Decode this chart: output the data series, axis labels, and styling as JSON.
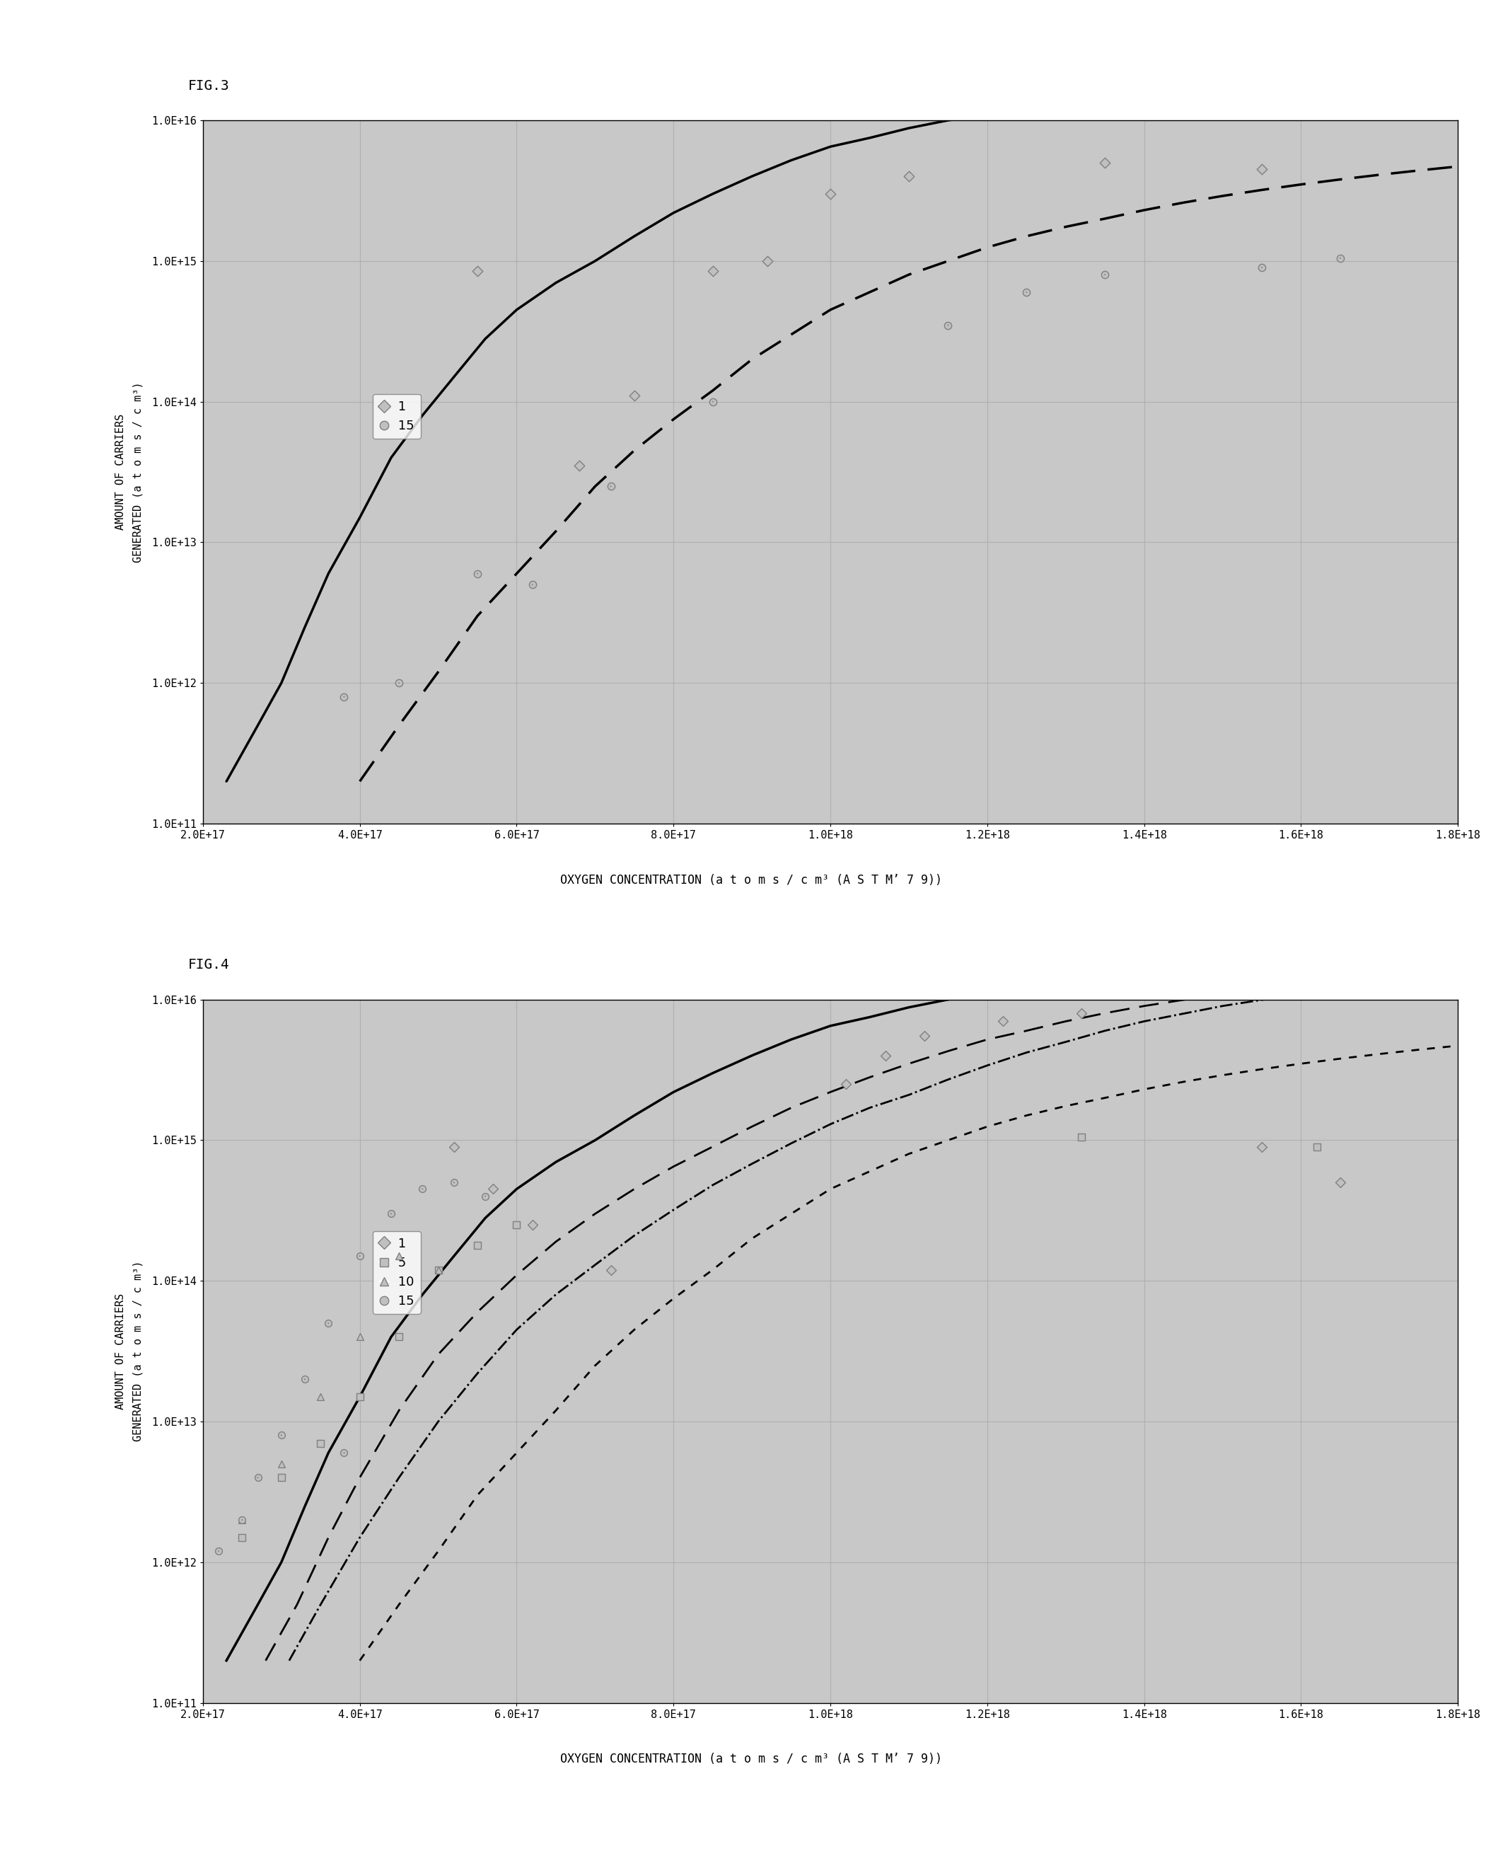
{
  "fig3_title": "FIG.3",
  "fig4_title": "FIG.4",
  "xlabel3": "2.0E+17 4.0E+17 6.0E+17 8.0E+17 1.0E+18 1.2E+18 1.4E+18 1.6E+18 1.8E+18",
  "xlabel4": "2.0E+17 4.0E+17 6.0E+17 8.0E+17 1.0E+18 1.2E+18 1.4E+18 1.6E+18 1.8E+18",
  "xlabel_label3": "OXYGEN CONCENTRATION (a t o m s / c m³ (A S T M’ 7 9))",
  "xlabel_label4": "OXYGEN CONCENTRATION (a t o m s / c m³ (A S T M’ 7 9))",
  "ylabel": "AMOUNT OF CARRIERS\nGENERATED (a t o m s / c m³)",
  "xmin": 2e+17,
  "xmax": 1.8e+18,
  "ymin": 100000000000.0,
  "ymax": 1e+16,
  "xticks": [
    2e+17,
    4e+17,
    6e+17,
    8e+17,
    1e+18,
    1.2e+18,
    1.4e+18,
    1.6e+18,
    1.8e+18
  ],
  "xtick_labels": [
    "2.0E+17",
    "4.0E+17",
    "6.0E+17",
    "8.0E+17",
    "1.0E+18",
    "1.2E+18",
    "1.4E+18",
    "1.6E+18",
    "1.8E+18"
  ],
  "yticks": [
    100000000000.0,
    1000000000000.0,
    10000000000000.0,
    100000000000000.0,
    1000000000000000.0,
    1e+16
  ],
  "ytick_labels": [
    "1.0E+11",
    "1.0E+12",
    "1.0E+13",
    "1.0E+14",
    "1.0E+15",
    "1.0E+16"
  ],
  "fig3_scatter1_x": [
    5.5e+17,
    6.8e+17,
    7.5e+17,
    8.5e+17,
    9.2e+17,
    1e+18,
    1.1e+18,
    1.35e+18,
    1.55e+18
  ],
  "fig3_scatter1_y": [
    850000000000000.0,
    35000000000000.0,
    110000000000000.0,
    850000000000000.0,
    1000000000000000.0,
    3000000000000000.0,
    4000000000000000.0,
    5000000000000000.0,
    4500000000000000.0
  ],
  "fig3_scatter15_x": [
    3.8e+17,
    4.5e+17,
    5.5e+17,
    6.2e+17,
    7.2e+17,
    8.5e+17,
    1.15e+18,
    1.25e+18,
    1.35e+18,
    1.55e+18,
    1.65e+18
  ],
  "fig3_scatter15_y": [
    800000000000.0,
    1000000000000.0,
    6000000000000.0,
    5000000000000.0,
    25000000000000.0,
    100000000000000.0,
    350000000000000.0,
    600000000000000.0,
    800000000000000.0,
    900000000000000.0,
    1050000000000000.0
  ],
  "fig3_curve1_x": [
    2.3e+17,
    2.7e+17,
    3e+17,
    3.3e+17,
    3.6e+17,
    4e+17,
    4.4e+17,
    4.8e+17,
    5.2e+17,
    5.6e+17,
    6e+17,
    6.5e+17,
    7e+17,
    7.5e+17,
    8e+17,
    8.5e+17,
    9e+17,
    9.5e+17,
    1e+18,
    1.05e+18,
    1.1e+18,
    1.15e+18,
    1.2e+18,
    1.25e+18,
    1.3e+18,
    1.35e+18,
    1.4e+18,
    1.5e+18,
    1.6e+18,
    1.7e+18,
    1.8e+18
  ],
  "fig3_curve1_y": [
    200000000000.0,
    500000000000.0,
    1000000000000.0,
    2500000000000.0,
    6000000000000.0,
    15000000000000.0,
    40000000000000.0,
    80000000000000.0,
    150000000000000.0,
    280000000000000.0,
    450000000000000.0,
    700000000000000.0,
    1000000000000000.0,
    1500000000000000.0,
    2200000000000000.0,
    3000000000000000.0,
    4000000000000000.0,
    5200000000000000.0,
    6500000000000000.0,
    7500000000000000.0,
    8800000000000000.0,
    1e+16,
    1.1e+16,
    1.2e+16,
    1.3e+16,
    1.4e+16,
    1.5e+16,
    1.7e+16,
    1.9e+16,
    2.1e+16,
    2.3e+16
  ],
  "fig3_curve15_x": [
    4e+17,
    4.5e+17,
    5e+17,
    5.5e+17,
    6e+17,
    6.5e+17,
    7e+17,
    7.5e+17,
    8e+17,
    8.5e+17,
    9e+17,
    9.5e+17,
    1e+18,
    1.05e+18,
    1.1e+18,
    1.15e+18,
    1.2e+18,
    1.25e+18,
    1.3e+18,
    1.35e+18,
    1.4e+18,
    1.45e+18,
    1.5e+18,
    1.55e+18,
    1.6e+18,
    1.65e+18,
    1.7e+18,
    1.75e+18,
    1.8e+18
  ],
  "fig3_curve15_y": [
    200000000000.0,
    500000000000.0,
    1200000000000.0,
    3000000000000.0,
    6000000000000.0,
    12000000000000.0,
    25000000000000.0,
    45000000000000.0,
    75000000000000.0,
    120000000000000.0,
    200000000000000.0,
    300000000000000.0,
    450000000000000.0,
    600000000000000.0,
    800000000000000.0,
    1000000000000000.0,
    1250000000000000.0,
    1500000000000000.0,
    1750000000000000.0,
    2000000000000000.0,
    2300000000000000.0,
    2600000000000000.0,
    2900000000000000.0,
    3200000000000000.0,
    3500000000000000.0,
    3800000000000000.0,
    4100000000000000.0,
    4400000000000000.0,
    4700000000000000.0
  ],
  "fig4_scatter1_x": [
    5.2e+17,
    5.7e+17,
    6.2e+17,
    7.2e+17,
    1.02e+18,
    1.07e+18,
    1.12e+18,
    1.22e+18,
    1.32e+18,
    1.55e+18,
    1.65e+18
  ],
  "fig4_scatter1_y": [
    900000000000000.0,
    450000000000000.0,
    250000000000000.0,
    120000000000000.0,
    2500000000000000.0,
    4000000000000000.0,
    5500000000000000.0,
    7000000000000000.0,
    8000000000000000.0,
    900000000000000.0,
    500000000000000.0
  ],
  "fig4_scatter5_x": [
    2.5e+17,
    3e+17,
    3.5e+17,
    4e+17,
    4.5e+17,
    5e+17,
    5.5e+17,
    6e+17,
    1.32e+18,
    1.62e+18
  ],
  "fig4_scatter5_y": [
    1500000000000.0,
    4000000000000.0,
    7000000000000.0,
    15000000000000.0,
    40000000000000.0,
    120000000000000.0,
    180000000000000.0,
    250000000000000.0,
    1050000000000000.0,
    900000000000000.0
  ],
  "fig4_scatter10_x": [
    2.5e+17,
    3e+17,
    3.5e+17,
    4e+17,
    4.5e+17,
    5e+17
  ],
  "fig4_scatter10_y": [
    2000000000000.0,
    5000000000000.0,
    15000000000000.0,
    40000000000000.0,
    150000000000000.0,
    120000000000000.0
  ],
  "fig4_scatter15_x": [
    2.2e+17,
    2.5e+17,
    2.7e+17,
    3e+17,
    3.3e+17,
    3.6e+17,
    4e+17,
    4.4e+17,
    4.8e+17,
    5.2e+17,
    5.6e+17,
    3.8e+17
  ],
  "fig4_scatter15_y": [
    1200000000000.0,
    2000000000000.0,
    4000000000000.0,
    8000000000000.0,
    20000000000000.0,
    50000000000000.0,
    150000000000000.0,
    300000000000000.0,
    450000000000000.0,
    500000000000000.0,
    400000000000000.0,
    6000000000000.0
  ],
  "fig4_curve1_x": [
    2.3e+17,
    2.7e+17,
    3e+17,
    3.3e+17,
    3.6e+17,
    4e+17,
    4.4e+17,
    4.8e+17,
    5.2e+17,
    5.6e+17,
    6e+17,
    6.5e+17,
    7e+17,
    7.5e+17,
    8e+17,
    8.5e+17,
    9e+17,
    9.5e+17,
    1e+18,
    1.05e+18,
    1.1e+18,
    1.15e+18,
    1.2e+18,
    1.25e+18,
    1.3e+18,
    1.35e+18,
    1.4e+18,
    1.5e+18,
    1.6e+18,
    1.7e+18,
    1.8e+18
  ],
  "fig4_curve1_y": [
    200000000000.0,
    500000000000.0,
    1000000000000.0,
    2500000000000.0,
    6000000000000.0,
    15000000000000.0,
    40000000000000.0,
    80000000000000.0,
    150000000000000.0,
    280000000000000.0,
    450000000000000.0,
    700000000000000.0,
    1000000000000000.0,
    1500000000000000.0,
    2200000000000000.0,
    3000000000000000.0,
    4000000000000000.0,
    5200000000000000.0,
    6500000000000000.0,
    7500000000000000.0,
    8800000000000000.0,
    1e+16,
    1.1e+16,
    1.2e+16,
    1.3e+16,
    1.4e+16,
    1.5e+16,
    1.7e+16,
    1.9e+16,
    2.1e+16,
    2.3e+16
  ],
  "fig4_curve5_x": [
    2.8e+17,
    3.2e+17,
    3.6e+17,
    4e+17,
    4.5e+17,
    5e+17,
    5.5e+17,
    6e+17,
    6.5e+17,
    7e+17,
    7.5e+17,
    8e+17,
    8.5e+17,
    9e+17,
    9.5e+17,
    1e+18,
    1.05e+18,
    1.1e+18,
    1.15e+18,
    1.2e+18,
    1.25e+18,
    1.3e+18,
    1.35e+18,
    1.4e+18,
    1.5e+18,
    1.6e+18,
    1.7e+18,
    1.8e+18
  ],
  "fig4_curve5_y": [
    200000000000.0,
    500000000000.0,
    1500000000000.0,
    4000000000000.0,
    12000000000000.0,
    30000000000000.0,
    60000000000000.0,
    110000000000000.0,
    190000000000000.0,
    300000000000000.0,
    450000000000000.0,
    650000000000000.0,
    900000000000000.0,
    1250000000000000.0,
    1700000000000000.0,
    2200000000000000.0,
    2800000000000000.0,
    3500000000000000.0,
    4300000000000000.0,
    5200000000000000.0,
    6000000000000000.0,
    7000000000000000.0,
    8000000000000000.0,
    9000000000000000.0,
    1.1e+16,
    1.3e+16,
    1.5e+16,
    1.65e+16
  ],
  "fig4_curve10_x": [
    3.1e+17,
    3.5e+17,
    4e+17,
    4.5e+17,
    5e+17,
    5.5e+17,
    6e+17,
    6.5e+17,
    7e+17,
    7.5e+17,
    8e+17,
    8.5e+17,
    9e+17,
    9.5e+17,
    1e+18,
    1.05e+18,
    1.1e+18,
    1.15e+18,
    1.2e+18,
    1.25e+18,
    1.3e+18,
    1.35e+18,
    1.4e+18,
    1.5e+18,
    1.6e+18,
    1.7e+18,
    1.8e+18
  ],
  "fig4_curve10_y": [
    200000000000.0,
    500000000000.0,
    1500000000000.0,
    4000000000000.0,
    10000000000000.0,
    22000000000000.0,
    45000000000000.0,
    80000000000000.0,
    130000000000000.0,
    210000000000000.0,
    320000000000000.0,
    480000000000000.0,
    680000000000000.0,
    950000000000000.0,
    1300000000000000.0,
    1700000000000000.0,
    2100000000000000.0,
    2700000000000000.0,
    3400000000000000.0,
    4200000000000000.0,
    5000000000000000.0,
    6000000000000000.0,
    7000000000000000.0,
    9000000000000000.0,
    1.1e+16,
    1.3e+16,
    1.5e+16
  ],
  "fig4_curve15_x": [
    4e+17,
    4.5e+17,
    5e+17,
    5.5e+17,
    6e+17,
    6.5e+17,
    7e+17,
    7.5e+17,
    8e+17,
    8.5e+17,
    9e+17,
    9.5e+17,
    1e+18,
    1.05e+18,
    1.1e+18,
    1.15e+18,
    1.2e+18,
    1.25e+18,
    1.3e+18,
    1.35e+18,
    1.4e+18,
    1.45e+18,
    1.5e+18,
    1.55e+18,
    1.6e+18,
    1.65e+18,
    1.7e+18,
    1.75e+18,
    1.8e+18
  ],
  "fig4_curve15_y": [
    200000000000.0,
    500000000000.0,
    1200000000000.0,
    3000000000000.0,
    6000000000000.0,
    12000000000000.0,
    25000000000000.0,
    45000000000000.0,
    75000000000000.0,
    120000000000000.0,
    200000000000000.0,
    300000000000000.0,
    450000000000000.0,
    600000000000000.0,
    800000000000000.0,
    1000000000000000.0,
    1250000000000000.0,
    1500000000000000.0,
    1750000000000000.0,
    2000000000000000.0,
    2300000000000000.0,
    2600000000000000.0,
    2900000000000000.0,
    3200000000000000.0,
    3500000000000000.0,
    3800000000000000.0,
    4100000000000000.0,
    4400000000000000.0,
    4700000000000000.0
  ],
  "bg_color": "#ffffff",
  "plot_bg": "#c8c8c8",
  "grid_color": "#aaaaaa",
  "line_color": "#000000",
  "scatter_color_dark": "#808080",
  "scatter_color_light": "#c0c0c0"
}
